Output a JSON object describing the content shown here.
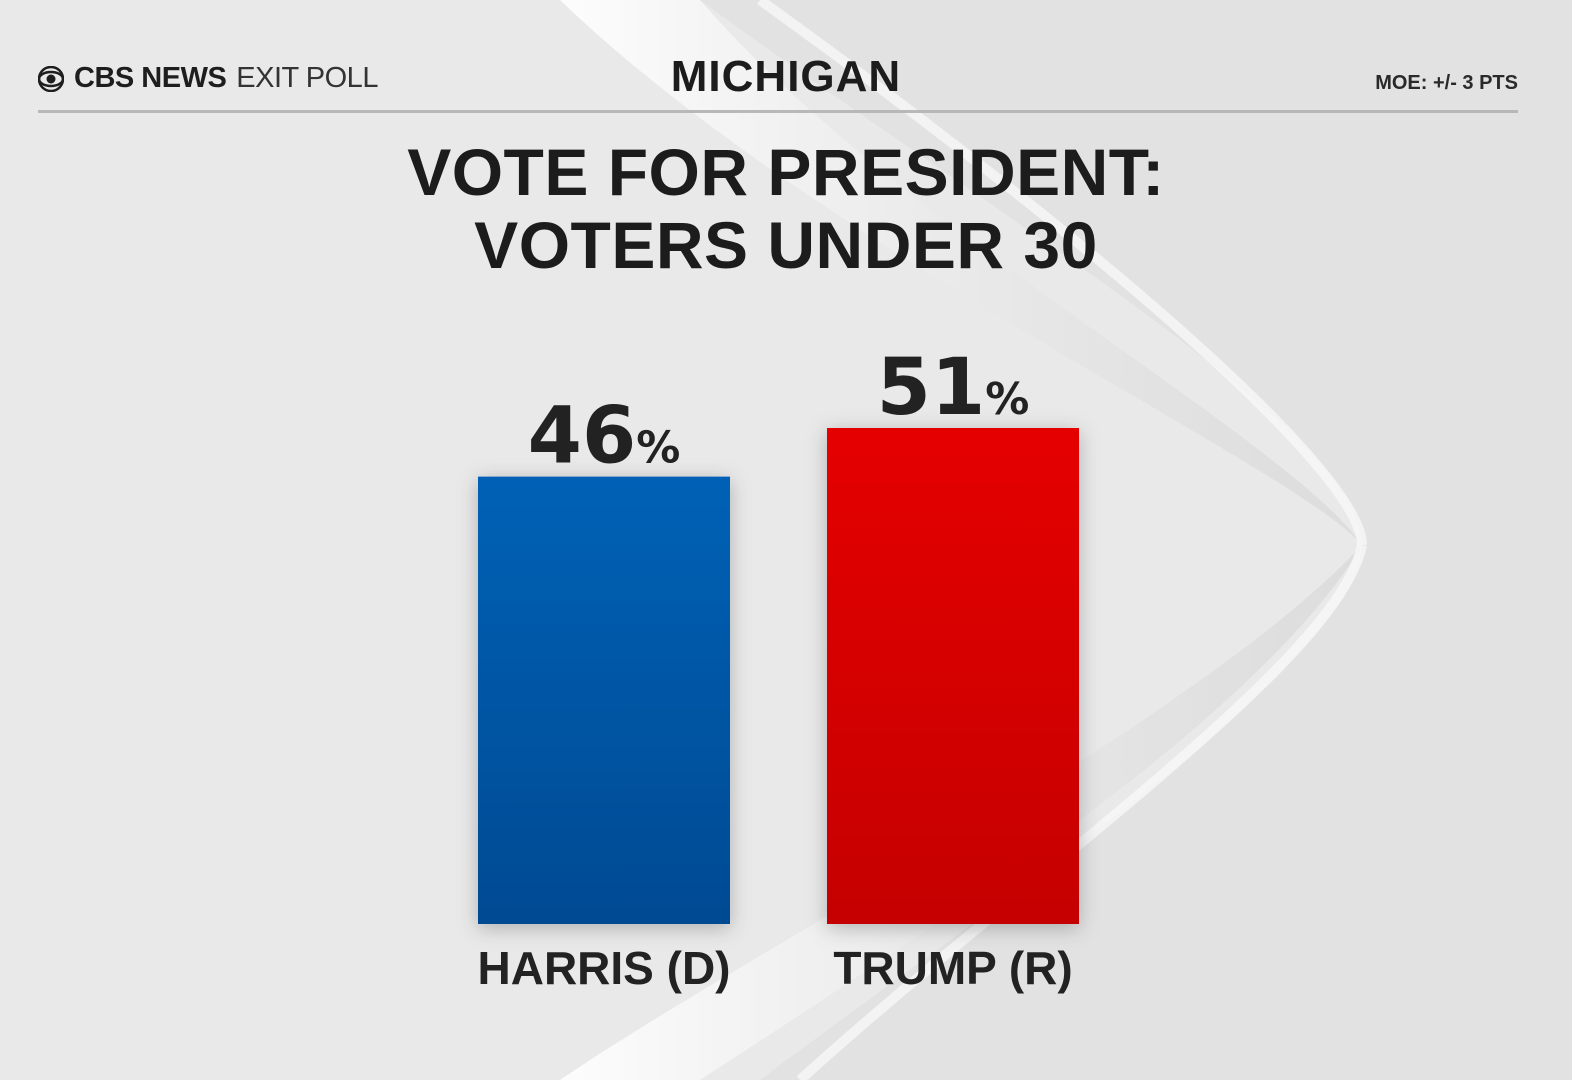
{
  "header": {
    "brand": "CBS NEWS",
    "brand_sub": "EXIT POLL",
    "state": "MICHIGAN",
    "moe": "MOE: +/- 3 PTS"
  },
  "title_lines": [
    "VOTE FOR PRESIDENT:",
    "VOTERS UNDER 30"
  ],
  "icons": {
    "logo": "cbs-eye-icon"
  },
  "chart_data": {
    "type": "bar",
    "title": "VOTE FOR PRESIDENT: VOTERS UNDER 30",
    "categories": [
      "HARRIS (D)",
      "TRUMP (R)"
    ],
    "values": [
      46,
      51
    ],
    "value_labels": [
      "46%",
      "51%"
    ],
    "colors": [
      "#0254a8",
      "#d90000"
    ],
    "unit": "%",
    "ylim": [
      0,
      51
    ],
    "xlabel": "",
    "ylabel": "",
    "grid": false,
    "legend": "none"
  }
}
